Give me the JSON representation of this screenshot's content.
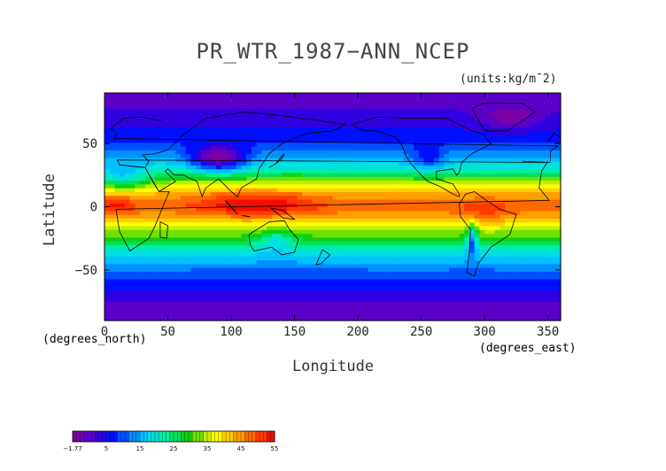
{
  "chart_data": {
    "type": "heatmap",
    "title": "PR_WTR_1987−ANN_NCEP",
    "units": "(units:kg/m¯2)",
    "xlabel": "Longitude",
    "ylabel": "Latitude",
    "x_units": "(degrees_north)",
    "x_units_east": "(degrees_east)",
    "xlim": [
      0,
      360
    ],
    "ylim": [
      -90,
      90
    ],
    "x_ticks": [
      0,
      50,
      100,
      150,
      200,
      250,
      300,
      350
    ],
    "y_ticks": [
      -50,
      0,
      50
    ],
    "colorbar": {
      "ticks": [
        "−1.77",
        "5",
        "15",
        "25",
        "35",
        "45",
        "55"
      ],
      "colors": [
        "#7a00a8",
        "#5a00c8",
        "#3000e0",
        "#0010ff",
        "#0050ff",
        "#0090ff",
        "#00c0ff",
        "#00e0e0",
        "#00f0a0",
        "#00e060",
        "#10d010",
        "#70e000",
        "#c0f000",
        "#ffff00",
        "#ffd000",
        "#ffa000",
        "#ff6a00",
        "#ff3a00",
        "#f01000"
      ]
    },
    "zonal_mean_by_lat": {
      "lat": [
        -90,
        -80,
        -70,
        -60,
        -50,
        -40,
        -30,
        -20,
        -10,
        0,
        10,
        20,
        30,
        40,
        50,
        60,
        70,
        80,
        90
      ],
      "value": [
        2,
        3,
        6,
        9,
        13,
        18,
        25,
        33,
        42,
        48,
        44,
        34,
        23,
        16,
        11,
        8,
        6,
        4,
        3
      ]
    }
  }
}
